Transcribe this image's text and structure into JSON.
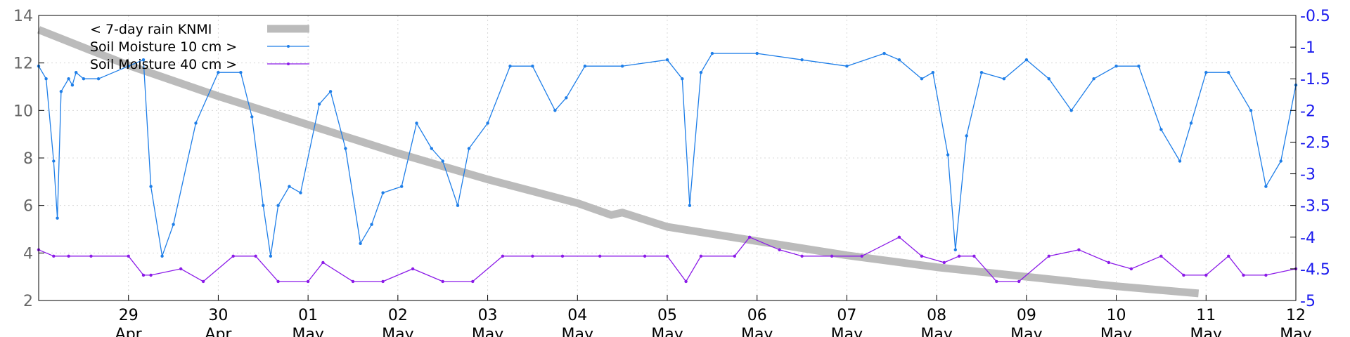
{
  "chart_data": {
    "type": "line",
    "x_axis": {
      "type": "date",
      "start": "2024-04-28T00:00",
      "end": "2024-05-12T00:00",
      "tick_labels": [
        [
          "29",
          "Apr"
        ],
        [
          "30",
          "Apr"
        ],
        [
          "01",
          "May"
        ],
        [
          "02",
          "May"
        ],
        [
          "03",
          "May"
        ],
        [
          "04",
          "May"
        ],
        [
          "05",
          "May"
        ],
        [
          "06",
          "May"
        ],
        [
          "07",
          "May"
        ],
        [
          "08",
          "May"
        ],
        [
          "09",
          "May"
        ],
        [
          "10",
          "May"
        ],
        [
          "11",
          "May"
        ],
        [
          "12",
          "May"
        ]
      ]
    },
    "y_left": {
      "range": [
        2,
        14
      ],
      "ticks": [
        "2",
        "4",
        "6",
        "8",
        "10",
        "12",
        "14"
      ],
      "color": "#666666"
    },
    "y_right": {
      "range": [
        -5,
        -0.5
      ],
      "ticks": [
        "-0.5",
        "-1",
        "-1.5",
        "-2",
        "-2.5",
        "-3",
        "-3.5",
        "-4",
        "-4.5",
        "-5"
      ],
      "color": "#1a1aee"
    },
    "grid": true,
    "legend": "top-left",
    "series": [
      {
        "name": "< 7-day rain KNMI",
        "axis": "left",
        "color": "#bbbbbb",
        "style": "thick-line",
        "x": [
          "2024-04-28T00:00",
          "2024-04-29T00:00",
          "2024-04-30T00:00",
          "2024-05-01T00:00",
          "2024-05-02T00:00",
          "2024-05-03T00:00",
          "2024-05-04T00:00",
          "2024-05-04T09:00",
          "2024-05-04T12:00",
          "2024-05-05T00:00",
          "2024-05-06T00:00",
          "2024-05-07T00:00",
          "2024-05-08T00:00",
          "2024-05-09T00:00",
          "2024-05-10T00:00",
          "2024-05-10T22:00"
        ],
        "y": [
          13.4,
          11.9,
          10.6,
          9.4,
          8.2,
          7.1,
          6.1,
          5.6,
          5.7,
          5.1,
          4.5,
          3.9,
          3.4,
          3.0,
          2.6,
          2.3
        ]
      },
      {
        "name": "Soil Moisture 10 cm >",
        "axis": "right",
        "color": "#1e7ee8",
        "style": "line-points",
        "x": [
          "2024-04-28T00:00",
          "2024-04-28T02:00",
          "2024-04-28T04:00",
          "2024-04-28T05:00",
          "2024-04-28T06:00",
          "2024-04-28T08:00",
          "2024-04-28T09:00",
          "2024-04-28T10:00",
          "2024-04-28T12:00",
          "2024-04-28T16:00",
          "2024-04-29T00:00",
          "2024-04-29T04:00",
          "2024-04-29T06:00",
          "2024-04-29T09:00",
          "2024-04-29T12:00",
          "2024-04-29T18:00",
          "2024-04-30T00:00",
          "2024-04-30T06:00",
          "2024-04-30T09:00",
          "2024-04-30T12:00",
          "2024-04-30T14:00",
          "2024-04-30T16:00",
          "2024-04-30T19:00",
          "2024-04-30T22:00",
          "2024-05-01T03:00",
          "2024-05-01T06:00",
          "2024-05-01T10:00",
          "2024-05-01T14:00",
          "2024-05-01T17:00",
          "2024-05-01T20:00",
          "2024-05-02T01:00",
          "2024-05-02T05:00",
          "2024-05-02T09:00",
          "2024-05-02T12:00",
          "2024-05-02T16:00",
          "2024-05-02T19:00",
          "2024-05-03T00:00",
          "2024-05-03T06:00",
          "2024-05-03T12:00",
          "2024-05-03T18:00",
          "2024-05-03T21:00",
          "2024-05-04T02:00",
          "2024-05-04T12:00",
          "2024-05-05T00:00",
          "2024-05-05T04:00",
          "2024-05-05T06:00",
          "2024-05-05T09:00",
          "2024-05-05T12:00",
          "2024-05-06T00:00",
          "2024-05-06T12:00",
          "2024-05-07T00:00",
          "2024-05-07T10:00",
          "2024-05-07T14:00",
          "2024-05-07T20:00",
          "2024-05-07T23:00",
          "2024-05-08T03:00",
          "2024-05-08T05:00",
          "2024-05-08T08:00",
          "2024-05-08T12:00",
          "2024-05-08T18:00",
          "2024-05-09T00:00",
          "2024-05-09T06:00",
          "2024-05-09T12:00",
          "2024-05-09T18:00",
          "2024-05-10T00:00",
          "2024-05-10T06:00",
          "2024-05-10T12:00",
          "2024-05-10T17:00",
          "2024-05-10T20:00",
          "2024-05-11T00:00",
          "2024-05-11T06:00",
          "2024-05-11T12:00",
          "2024-05-11T16:00",
          "2024-05-11T20:00",
          "2024-05-12T00:00"
        ],
        "y": [
          -1.3,
          -1.5,
          -2.8,
          -3.7,
          -1.7,
          -1.5,
          -1.6,
          -1.4,
          -1.5,
          -1.5,
          -1.3,
          -1.2,
          -3.2,
          -4.3,
          -3.8,
          -2.2,
          -1.4,
          -1.4,
          -2.1,
          -3.5,
          -4.3,
          -3.5,
          -3.2,
          -3.3,
          -1.9,
          -1.7,
          -2.6,
          -4.1,
          -3.8,
          -3.3,
          -3.2,
          -2.2,
          -2.6,
          -2.8,
          -3.5,
          -2.6,
          -2.2,
          -1.3,
          -1.3,
          -2.0,
          -1.8,
          -1.3,
          -1.3,
          -1.2,
          -1.5,
          -3.5,
          -1.4,
          -1.1,
          -1.1,
          -1.2,
          -1.3,
          -1.1,
          -1.2,
          -1.5,
          -1.4,
          -2.7,
          -4.2,
          -2.4,
          -1.4,
          -1.5,
          -1.2,
          -1.5,
          -2.0,
          -1.5,
          -1.3,
          -1.3,
          -2.3,
          -2.8,
          -2.2,
          -1.4,
          -1.4,
          -2.0,
          -3.2,
          -2.8,
          -1.6
        ]
      },
      {
        "name": "Soil Moisture 40 cm >",
        "axis": "right",
        "color": "#8b1ae8",
        "style": "line-points",
        "x": [
          "2024-04-28T00:00",
          "2024-04-28T04:00",
          "2024-04-28T08:00",
          "2024-04-28T14:00",
          "2024-04-29T00:00",
          "2024-04-29T04:00",
          "2024-04-29T06:00",
          "2024-04-29T14:00",
          "2024-04-29T20:00",
          "2024-04-30T04:00",
          "2024-04-30T10:00",
          "2024-04-30T16:00",
          "2024-05-01T00:00",
          "2024-05-01T04:00",
          "2024-05-01T12:00",
          "2024-05-01T20:00",
          "2024-05-02T04:00",
          "2024-05-02T12:00",
          "2024-05-02T20:00",
          "2024-05-03T04:00",
          "2024-05-03T12:00",
          "2024-05-03T20:00",
          "2024-05-04T06:00",
          "2024-05-04T18:00",
          "2024-05-05T00:00",
          "2024-05-05T05:00",
          "2024-05-05T09:00",
          "2024-05-05T18:00",
          "2024-05-05T22:00",
          "2024-05-06T06:00",
          "2024-05-06T12:00",
          "2024-05-06T20:00",
          "2024-05-07T04:00",
          "2024-05-07T14:00",
          "2024-05-07T20:00",
          "2024-05-08T02:00",
          "2024-05-08T06:00",
          "2024-05-08T10:00",
          "2024-05-08T16:00",
          "2024-05-08T22:00",
          "2024-05-09T06:00",
          "2024-05-09T14:00",
          "2024-05-09T22:00",
          "2024-05-10T04:00",
          "2024-05-10T12:00",
          "2024-05-10T18:00",
          "2024-05-11T00:00",
          "2024-05-11T06:00",
          "2024-05-11T10:00",
          "2024-05-11T16:00",
          "2024-05-12T00:00"
        ],
        "y": [
          -4.2,
          -4.3,
          -4.3,
          -4.3,
          -4.3,
          -4.6,
          -4.6,
          -4.5,
          -4.7,
          -4.3,
          -4.3,
          -4.7,
          -4.7,
          -4.4,
          -4.7,
          -4.7,
          -4.5,
          -4.7,
          -4.7,
          -4.3,
          -4.3,
          -4.3,
          -4.3,
          -4.3,
          -4.3,
          -4.7,
          -4.3,
          -4.3,
          -4.0,
          -4.2,
          -4.3,
          -4.3,
          -4.3,
          -4.0,
          -4.3,
          -4.4,
          -4.3,
          -4.3,
          -4.7,
          -4.7,
          -4.3,
          -4.2,
          -4.4,
          -4.5,
          -4.3,
          -4.6,
          -4.6,
          -4.3,
          -4.6,
          -4.6,
          -4.5
        ]
      }
    ]
  }
}
